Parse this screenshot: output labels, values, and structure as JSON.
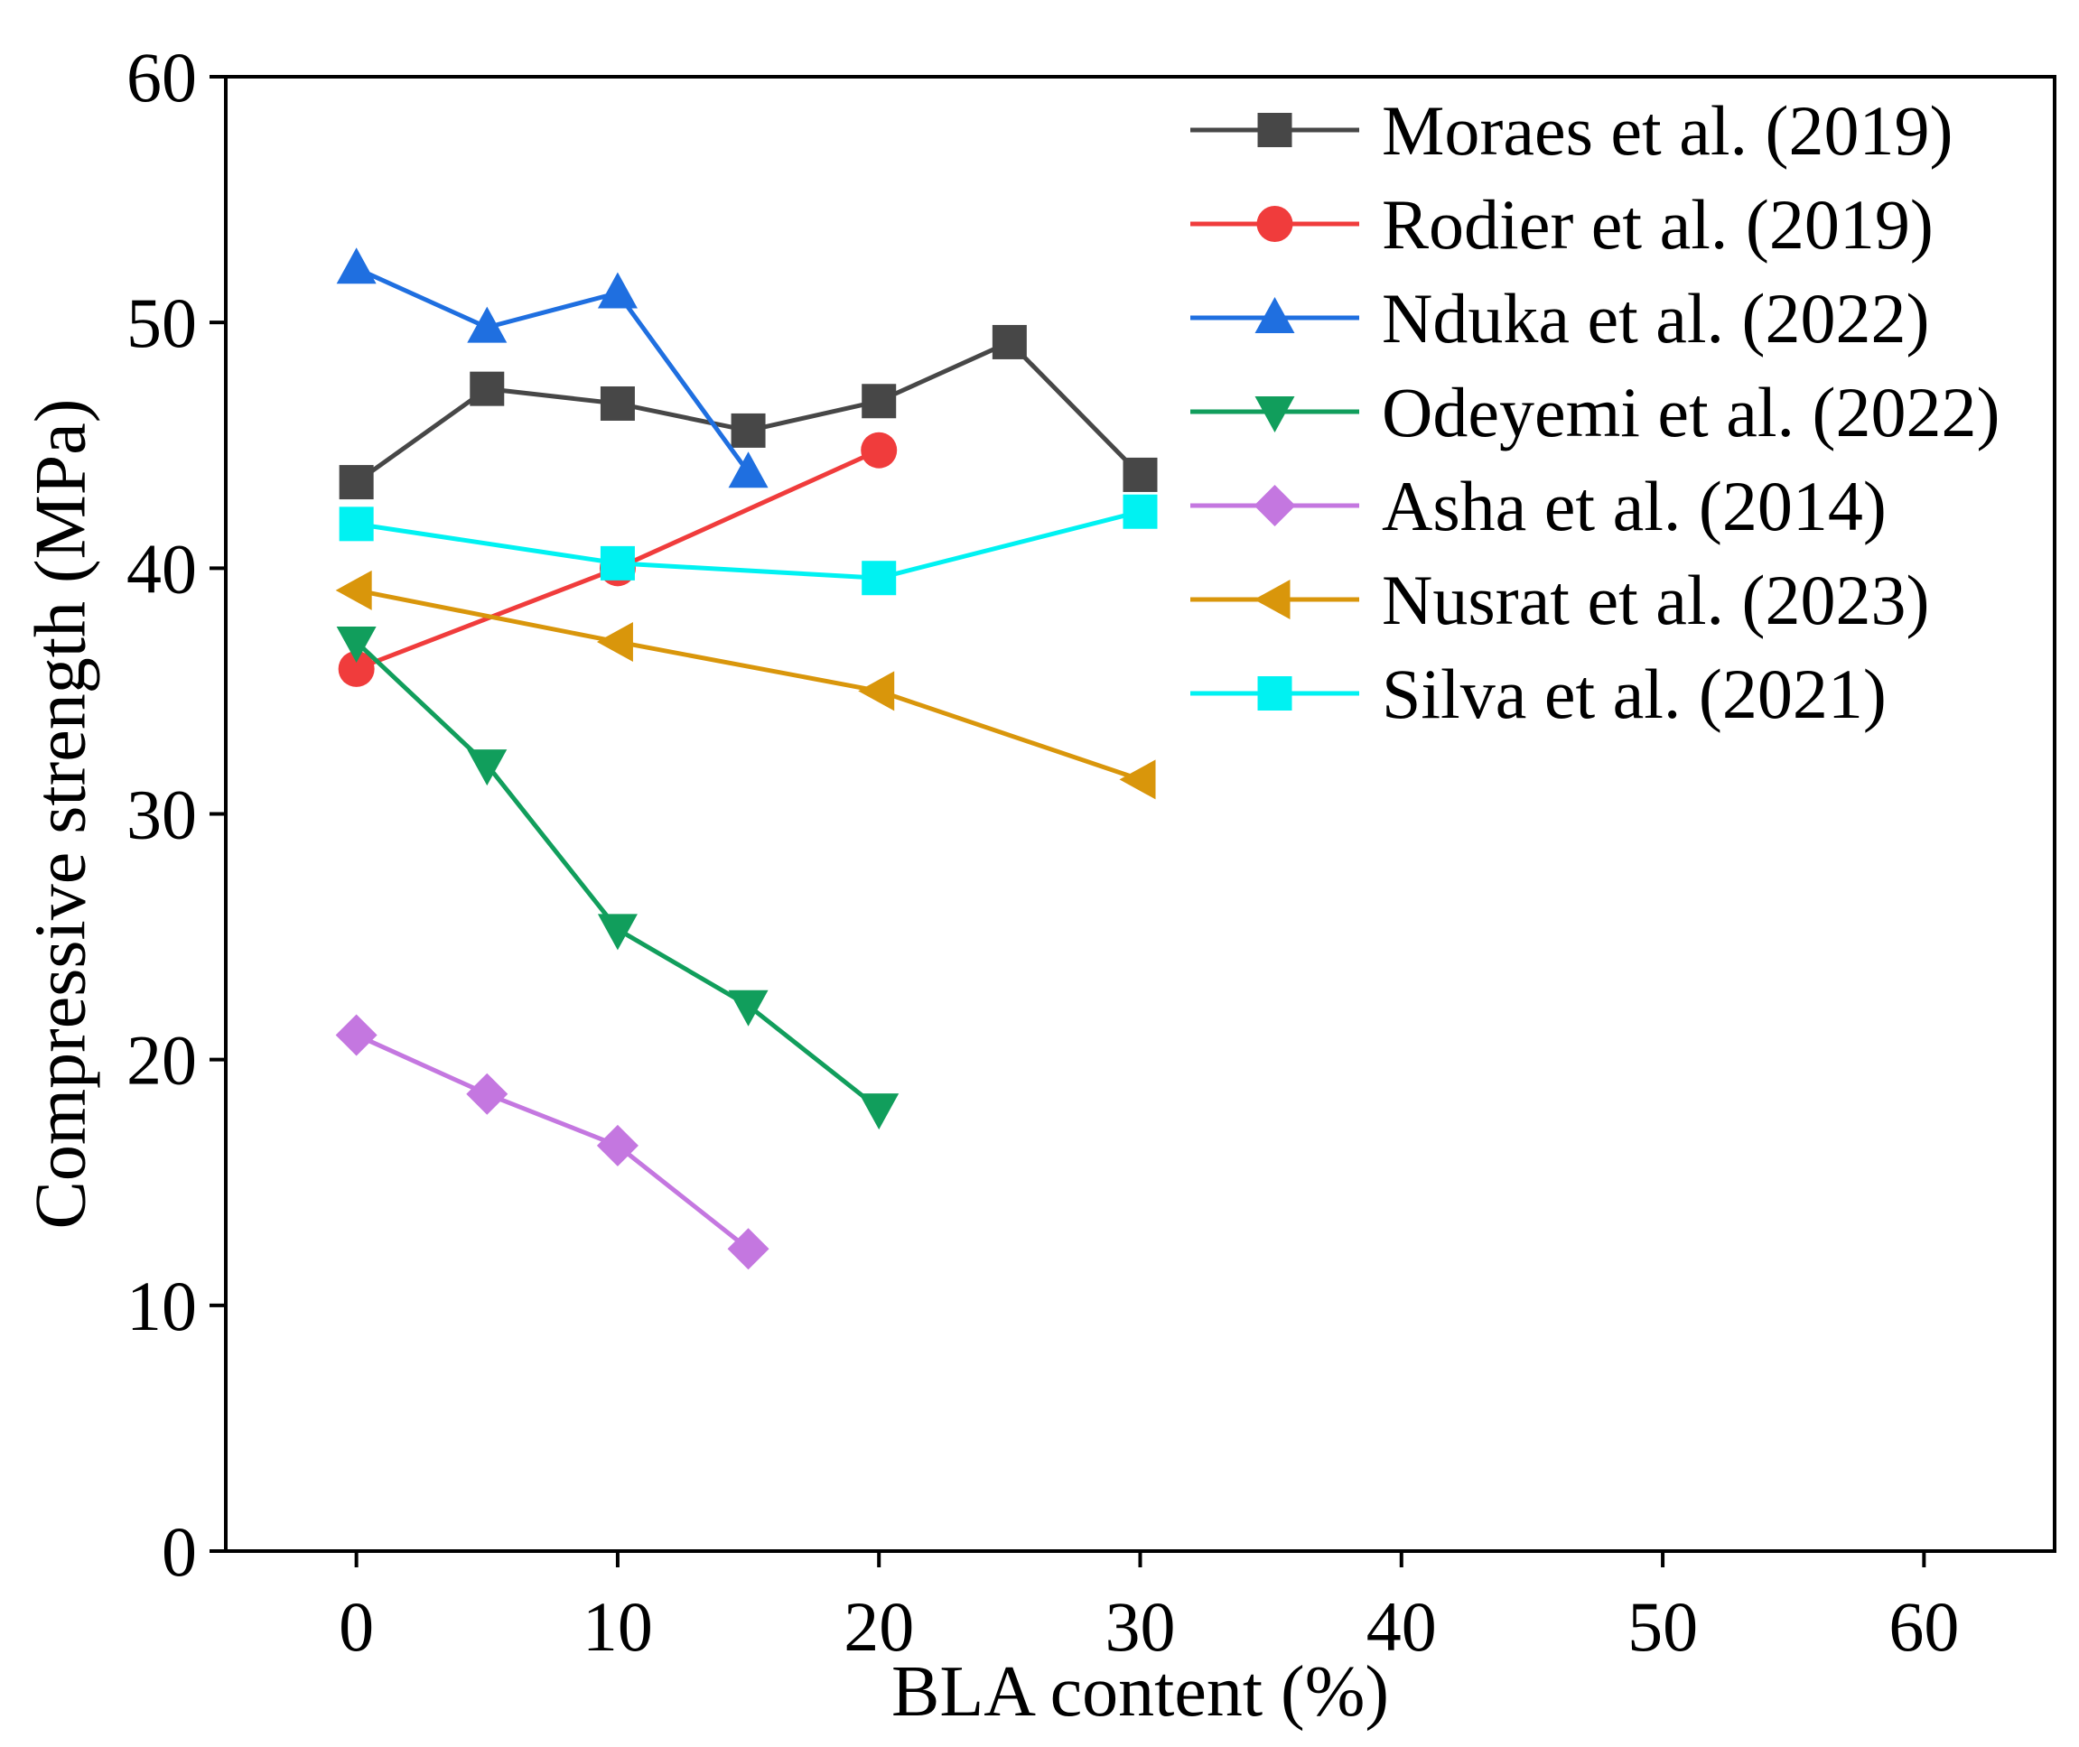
{
  "chart_data": {
    "type": "line",
    "xlabel": "BLA content (%)",
    "ylabel": "Compressive strength (MPa)",
    "xlim": [
      -5,
      65
    ],
    "ylim": [
      0,
      60
    ],
    "xticks": [
      0,
      10,
      20,
      30,
      40,
      50,
      60
    ],
    "yticks": [
      0,
      10,
      20,
      30,
      40,
      50,
      60
    ],
    "xtick_labels": [
      "0",
      "10",
      "20",
      "30",
      "40",
      "50",
      "60"
    ],
    "ytick_labels": [
      "0",
      "10",
      "20",
      "30",
      "40",
      "50",
      "60"
    ],
    "grid": false,
    "legend_position": "top-right",
    "series": [
      {
        "name": "Moraes et al. (2019)",
        "color": "#474747",
        "marker": "square",
        "x": [
          0,
          5,
          10,
          15,
          20,
          25,
          30
        ],
        "y": [
          43.5,
          47.3,
          46.7,
          45.6,
          46.8,
          49.2,
          43.8
        ]
      },
      {
        "name": "Rodier et al. (2019)",
        "color": "#f03c3c",
        "marker": "circle",
        "x": [
          0,
          10,
          20
        ],
        "y": [
          35.9,
          40.0,
          44.8
        ]
      },
      {
        "name": "Nduka et al. (2022)",
        "color": "#1f6fe0",
        "marker": "triangle-up",
        "x": [
          0,
          5,
          10,
          15
        ],
        "y": [
          52.2,
          49.8,
          51.2,
          43.9
        ]
      },
      {
        "name": "Odeyemi et al. (2022)",
        "color": "#119e5c",
        "marker": "triangle-down",
        "x": [
          0,
          5,
          10,
          15,
          20
        ],
        "y": [
          37.0,
          32.0,
          25.3,
          22.2,
          18.0
        ]
      },
      {
        "name": "Asha et al. (2014)",
        "color": "#c477e0",
        "marker": "diamond",
        "x": [
          0,
          5,
          10,
          15
        ],
        "y": [
          21.0,
          18.6,
          16.5,
          12.3
        ]
      },
      {
        "name": "Nusrat et al. (2023)",
        "color": "#d9960b",
        "marker": "triangle-left",
        "x": [
          0,
          10,
          20,
          30
        ],
        "y": [
          39.1,
          37.0,
          35.0,
          31.4
        ]
      },
      {
        "name": "Silva et al. (2021)",
        "color": "#00f2f2",
        "marker": "square",
        "x": [
          0,
          10,
          20,
          30
        ],
        "y": [
          41.8,
          40.2,
          39.6,
          42.3
        ]
      }
    ]
  }
}
